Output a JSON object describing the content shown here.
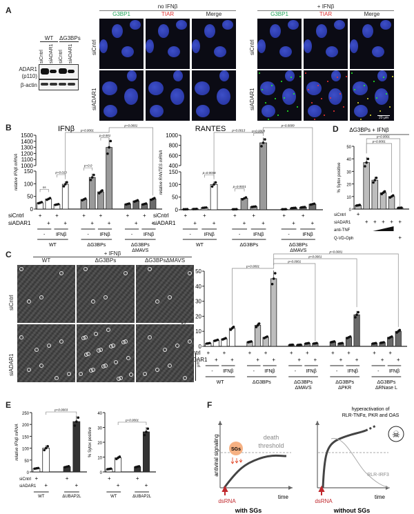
{
  "panels": {
    "A": "A",
    "B": "B",
    "C": "C",
    "D": "D",
    "E": "E",
    "F": "F"
  },
  "panelA": {
    "blot": {
      "groups": [
        "WT",
        "ΔG3BPs"
      ],
      "lanes": [
        "siCntrl",
        "siADAR1",
        "siCntrl",
        "siADAR1"
      ],
      "rows": [
        "ADAR1\n(p110)",
        "β-actin"
      ],
      "row1": "ADAR1",
      "row1b": "(p110)",
      "row2": "β-actin"
    },
    "noIFN": "no IFNβ",
    "plusIFN": "+ IFNβ",
    "channels": [
      "G3BP1",
      "TIAR",
      "Merge"
    ],
    "channel_colors": [
      "#1fa45a",
      "#e03030",
      "#222222"
    ],
    "rows": [
      "siCntrl",
      "siADAR1"
    ],
    "scalebar": "20 μm"
  },
  "panelC": {
    "header": "+ IFNβ",
    "columns": [
      "WT",
      "ΔG3BPs",
      "ΔG3BPsΔMAVS"
    ],
    "rows": [
      "siCntrl",
      "siADAR1"
    ],
    "scalebar": "μm"
  },
  "chart_data": [
    {
      "id": "B1",
      "type": "bar",
      "title": "IFNβ",
      "ylabel": "relative IFNβ mRNA",
      "lower_ticks": [
        0,
        50,
        100,
        150
      ],
      "upper_ticks": [
        1000,
        1100,
        1200,
        1300,
        1400,
        1500
      ],
      "ylim_lower": [
        0,
        150
      ],
      "ylim_upper": [
        1000,
        1500
      ],
      "groups": [
        "WT",
        "ΔG3BPs",
        "ΔG3BPs ΔMAVS"
      ],
      "group_lines": [
        [
          "WT"
        ],
        [
          "ΔG3BPs"
        ],
        [
          "ΔG3BPs",
          "ΔMAVS"
        ]
      ],
      "sublabels": [
        "-",
        "IFNβ"
      ],
      "values": [
        [
          25,
          40,
          18,
          98
        ],
        [
          38,
          125,
          68,
          1300
        ],
        [
          20,
          32,
          20,
          40
        ]
      ],
      "colors": [
        "#ffffff",
        "#9a9a9a",
        "#6a6a6a"
      ],
      "row_labels": [
        "siCntrl",
        "siADAR1"
      ],
      "signs": [
        [
          "+",
          "",
          "+",
          ""
        ],
        [
          "",
          "+",
          "",
          "+"
        ]
      ],
      "comparisons": [
        {
          "a": 0,
          "b": 1,
          "p": "ns"
        },
        {
          "a": 2,
          "b": 3,
          "p": "p=0.010"
        },
        {
          "a": 4,
          "b": 5,
          "p": "p=0.0"
        },
        {
          "a": 6,
          "b": 7,
          "p": "p=0.001"
        },
        {
          "a": 3,
          "b": 7,
          "p": "p=0.0001"
        },
        {
          "a": 7,
          "b": 11,
          "p": "p=0.0001"
        }
      ]
    },
    {
      "id": "B2",
      "type": "bar",
      "title": "RANTES",
      "ylabel": "relative RANTES mRNA",
      "lower_ticks": [
        0,
        50,
        100,
        150
      ],
      "upper_ticks": [
        400,
        600,
        800,
        1000
      ],
      "ylim_lower": [
        0,
        150
      ],
      "ylim_upper": [
        400,
        1000
      ],
      "groups": [
        "WT",
        "ΔG3BPs",
        "ΔG3BPs ΔMAVS"
      ],
      "group_lines": [
        [
          "WT"
        ],
        [
          "ΔG3BPs"
        ],
        [
          "ΔG3BPs",
          "ΔMAVS"
        ]
      ],
      "sublabels": [
        "-",
        "IFNβ"
      ],
      "values": [
        [
          2,
          3,
          8,
          100
        ],
        [
          2,
          45,
          12,
          850
        ],
        [
          2,
          7,
          10,
          22
        ]
      ],
      "colors": [
        "#ffffff",
        "#9a9a9a",
        "#6a6a6a"
      ],
      "row_labels": [
        "siCntrl",
        "siADAR1"
      ],
      "signs": [
        [
          "+",
          "",
          "+",
          ""
        ],
        [
          "",
          "+",
          "",
          "+"
        ]
      ],
      "comparisons": [
        {
          "a": 2,
          "b": 3,
          "p": "p=0.0036"
        },
        {
          "a": 4,
          "b": 5,
          "p": "p=0.0021"
        },
        {
          "a": 6,
          "b": 7,
          "p": "p=0.0008"
        },
        {
          "a": 3,
          "b": 7,
          "p": "p=0.0013"
        },
        {
          "a": 7,
          "b": 11,
          "p": "p=0.0009"
        }
      ]
    },
    {
      "id": "D",
      "type": "bar",
      "title": "ΔG3BPs + IFNβ",
      "ylabel": "% Sytox positive",
      "ticks": [
        0,
        10,
        20,
        30,
        40,
        50
      ],
      "ylim": [
        0,
        50
      ],
      "values": [
        3,
        37,
        23,
        13,
        10,
        1
      ],
      "color": "#bdbdbd",
      "row_labels": [
        "siCntrl",
        "siADAR1",
        "anti-TNF",
        "Q-VD-Oph"
      ],
      "signs": [
        [
          "+",
          "",
          "",
          "",
          "",
          ""
        ],
        [
          "",
          "+",
          "+",
          "+",
          "+",
          "+"
        ],
        [
          "",
          "",
          "ramp",
          "ramp",
          "ramp",
          ""
        ],
        [
          "",
          "",
          "",
          "",
          "",
          "+"
        ]
      ],
      "comparisons": [
        {
          "a": 1,
          "b": 4,
          "p": "p=0.0001"
        },
        {
          "a": 1,
          "b": 5,
          "p": "p=0.0001"
        }
      ]
    },
    {
      "id": "C",
      "type": "bar",
      "ylabel": "% Sytox positive",
      "ticks": [
        0,
        10,
        20,
        30,
        40,
        50
      ],
      "ylim": [
        0,
        50
      ],
      "groups": [
        "WT",
        "ΔG3BPs",
        "ΔG3BPs ΔMAVS",
        "ΔG3BPs ΔPKR",
        "ΔG3BPs ΔRNase L"
      ],
      "group_lines": [
        [
          "WT"
        ],
        [
          "ΔG3BPs"
        ],
        [
          "ΔG3BPs",
          "ΔMAVS"
        ],
        [
          "ΔG3BPs",
          "ΔPKR"
        ],
        [
          "ΔG3BPs",
          "ΔRNase L"
        ]
      ],
      "sublabels": [
        "-",
        "IFNβ"
      ],
      "values": [
        [
          2,
          4,
          5,
          12
        ],
        [
          3,
          14,
          6,
          45
        ],
        [
          1,
          1,
          2,
          2
        ],
        [
          3,
          2,
          6,
          21
        ],
        [
          2,
          2.5,
          6,
          10
        ]
      ],
      "colors": [
        "#ffffff",
        "#bdbdbd",
        "#8a8a8a",
        "#6a6a6a",
        "#6a6a6a"
      ],
      "row_labels": [
        "siCntrl",
        "siADAR1"
      ],
      "signs": [
        [
          "+",
          "",
          "+",
          ""
        ],
        [
          "",
          "+",
          "",
          "+"
        ]
      ],
      "comparisons": [
        {
          "a": 3,
          "b": 7,
          "p": "p=0.0001"
        },
        {
          "a": 7,
          "b": 11,
          "p": "p=0.0001"
        },
        {
          "a": 7,
          "b": 15,
          "p": "p=0.0001"
        },
        {
          "a": 7,
          "b": 19,
          "p": "p=0.0001"
        }
      ]
    },
    {
      "id": "E1",
      "type": "bar",
      "ylabel": "relative IFNβ mRNA",
      "ticks": [
        0,
        50,
        100,
        150,
        200,
        250
      ],
      "ylim": [
        0,
        250
      ],
      "groups": [
        "WT",
        "ΔUBAP2L"
      ],
      "values": [
        [
          15,
          100
        ],
        [
          22,
          212
        ]
      ],
      "colors": [
        "#ffffff",
        "#333333"
      ],
      "row_labels": [
        "siCntrl",
        "siADAR1"
      ],
      "signs": [
        [
          "+",
          ""
        ],
        [
          "",
          "+"
        ]
      ],
      "comparisons": [
        {
          "a": 1,
          "b": 3,
          "p": "p=0.0003"
        }
      ]
    },
    {
      "id": "E2",
      "type": "bar",
      "ylabel": "% Sytox positive",
      "ticks": [
        0,
        10,
        20,
        30,
        40
      ],
      "ylim": [
        0,
        40
      ],
      "groups": [
        "WT",
        "ΔUBAP2L"
      ],
      "values": [
        [
          2,
          9.5
        ],
        [
          3.5,
          27
        ]
      ],
      "colors": [
        "#ffffff",
        "#333333"
      ],
      "signs": [
        [
          "+",
          ""
        ],
        [
          "",
          "+"
        ]
      ],
      "comparisons": [
        {
          "a": 1,
          "b": 3,
          "p": "p=0.0001"
        }
      ]
    }
  ],
  "panelF": {
    "left": {
      "ylabel": "antiviral signaling",
      "xlabel": "time",
      "trigger": "dsRNA",
      "sg": "SGs",
      "threshold": "death\nthreshold",
      "threshold1": "death",
      "threshold2": "threshold",
      "caption": "with SGs"
    },
    "right": {
      "xlabel": "time",
      "trigger": "dsRNA",
      "hyper1": "hyperactivation of",
      "hyper2": "RLR-TNFα, PKR and OAS",
      "irf": "RLR-IRF3",
      "caption": "without SGs",
      "icon": "skull-crossbones-icon"
    },
    "colors": {
      "trigger": "#c0282d",
      "sg": "#f6b183",
      "curve": "#444444"
    }
  }
}
